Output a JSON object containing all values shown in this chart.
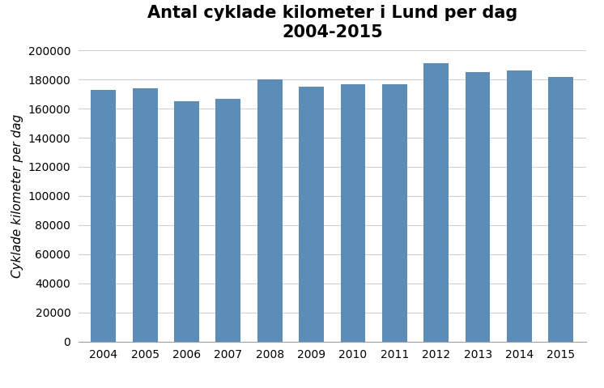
{
  "title": "Antal cyklade kilometer i Lund per dag\n2004-2015",
  "ylabel": "Cyklade kilometer per dag",
  "years": [
    2004,
    2005,
    2006,
    2007,
    2008,
    2009,
    2010,
    2011,
    2012,
    2013,
    2014,
    2015
  ],
  "values": [
    173000,
    174000,
    165000,
    167000,
    180000,
    175000,
    177000,
    177000,
    191000,
    185000,
    186000,
    182000
  ],
  "bar_color": "#5b8db8",
  "ylim": [
    0,
    200000
  ],
  "yticks": [
    0,
    20000,
    40000,
    60000,
    80000,
    100000,
    120000,
    140000,
    160000,
    180000,
    200000
  ],
  "background_color": "#ffffff",
  "title_fontsize": 15,
  "ylabel_fontsize": 11,
  "tick_fontsize": 10,
  "bar_width": 0.6
}
